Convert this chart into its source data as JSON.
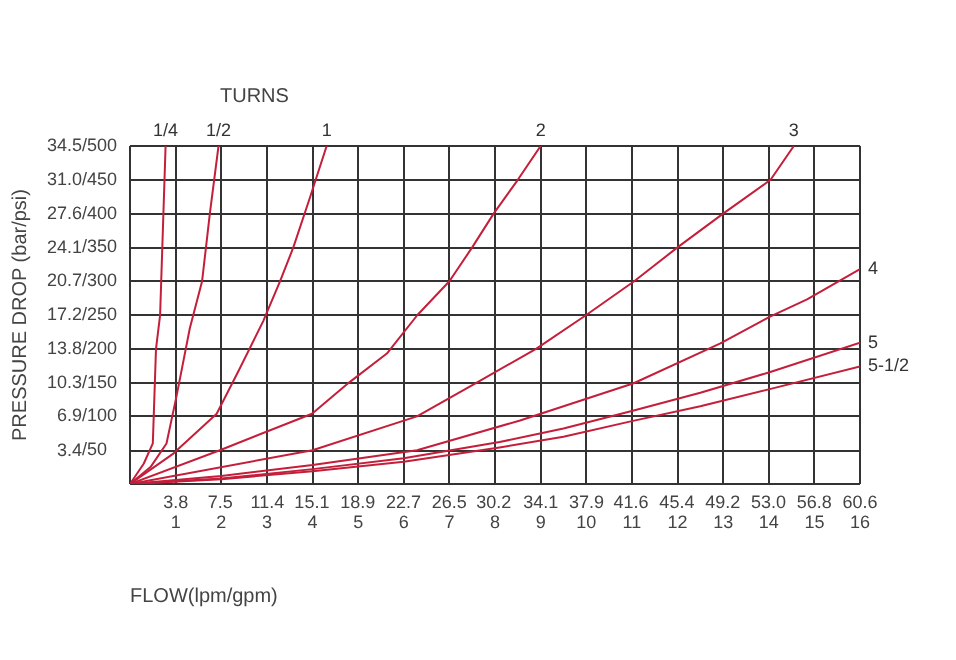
{
  "chart_data": {
    "type": "line",
    "xlabel": "FLOW(lpm/gpm)",
    "ylabel": "PRESSURE DROP (bar/psi)",
    "annotations": [
      "TURNS"
    ],
    "xlim": [
      0,
      16
    ],
    "xticks": [
      {
        "value": 0,
        "label": null
      },
      1,
      2,
      3,
      4,
      5,
      6,
      7,
      8,
      9,
      10,
      11,
      12,
      13,
      14,
      15,
      16
    ],
    "x2lim": [
      0,
      60.6
    ],
    "x2ticks": [
      3.8,
      7.5,
      11.4,
      15.1,
      18.9,
      22.7,
      26.5,
      30.2,
      34.1,
      37.9,
      41.6,
      45.4,
      49.2,
      {
        "value": 53.0,
        "label": "53.0"
      },
      56.8,
      60.6
    ],
    "ylim": [
      0,
      34.5
    ],
    "yticks": [
      {
        "value": 0,
        "label": null
      },
      3.4,
      6.9,
      10.3,
      13.8,
      17.2,
      20.7,
      24.1,
      27.6,
      {
        "value": 31.0,
        "label": "31.0"
      },
      34.5
    ],
    "y2lim": [
      0,
      500
    ],
    "y2ticks": [
      {
        "value": 50,
        "label": "/50"
      },
      {
        "value": 100,
        "label": "/100"
      },
      {
        "value": 150,
        "label": "/150"
      },
      {
        "value": 200,
        "label": "/200"
      },
      {
        "value": 250,
        "label": "/250"
      },
      {
        "value": 300,
        "label": "/300"
      },
      {
        "value": 350,
        "label": "/350"
      },
      {
        "value": 400,
        "label": "/400"
      },
      {
        "value": 450,
        "label": "/450"
      },
      {
        "value": 500,
        "label": "/500"
      }
    ],
    "grid": true,
    "legend": false,
    "marker": "none",
    "line_style": "solid",
    "series": [
      {
        "name": "1/4",
        "color": "#c41e3a",
        "axis": "y2",
        "x": [
          0,
          0.3,
          0.5,
          0.57,
          0.66,
          0.78
        ],
        "values": [
          0,
          30,
          60,
          200,
          250,
          500
        ]
      },
      {
        "name": "1/2",
        "color": "#c41e3a",
        "axis": "y2",
        "x": [
          0,
          0.45,
          0.8,
          1.02,
          1.31,
          1.58,
          1.75,
          1.94
        ],
        "values": [
          0,
          25,
          60,
          130,
          230,
          300,
          400,
          500
        ]
      },
      {
        "name": "1",
        "color": "#c41e3a",
        "axis": "y2",
        "x": [
          0,
          0.95,
          1.9,
          2.4,
          2.92,
          3.29,
          3.58,
          3.95,
          4.31
        ],
        "values": [
          0,
          45,
          104,
          170,
          241,
          300,
          350,
          425,
          500
        ]
      },
      {
        "name": "2",
        "color": "#c41e3a",
        "axis": "y2",
        "x": [
          0,
          1.97,
          3.99,
          4.8,
          5.63,
          6.3,
          7.0,
          7.5,
          7.97,
          8.5,
          9.0
        ],
        "values": [
          0,
          50,
          104,
          150,
          193,
          250,
          300,
          350,
          400,
          450,
          500
        ]
      },
      {
        "name": "3",
        "color": "#c41e3a",
        "axis": "y2",
        "x": [
          0,
          4.0,
          6.29,
          7.6,
          8.9,
          10.0,
          11.05,
          12.0,
          13.0,
          14.04,
          14.55
        ],
        "values": [
          0,
          50,
          100,
          150,
          200,
          250,
          300,
          350,
          400,
          450,
          500
        ]
      },
      {
        "name": "4",
        "color": "#c41e3a",
        "axis": "y2",
        "x": [
          0,
          2,
          4,
          6.29,
          8.55,
          11.04,
          12.94,
          14.04,
          14.84,
          16
        ],
        "values": [
          0,
          12,
          28,
          50,
          94,
          149,
          208,
          248,
          273,
          318
        ]
      },
      {
        "name": "5",
        "color": "#c41e3a",
        "axis": "y2",
        "x": [
          0,
          2,
          4,
          6,
          8.1,
          9.5,
          11,
          12.5,
          14,
          16
        ],
        "values": [
          0,
          8,
          22,
          38,
          62,
          82,
          108,
          135,
          165,
          209
        ]
      },
      {
        "name": "5-1/2",
        "color": "#c41e3a",
        "axis": "y2",
        "x": [
          0,
          2,
          4,
          6,
          8.1,
          9.5,
          11,
          12.5,
          14,
          16
        ],
        "values": [
          0,
          7,
          19,
          33,
          54,
          70,
          93,
          115,
          140,
          174
        ]
      }
    ]
  }
}
